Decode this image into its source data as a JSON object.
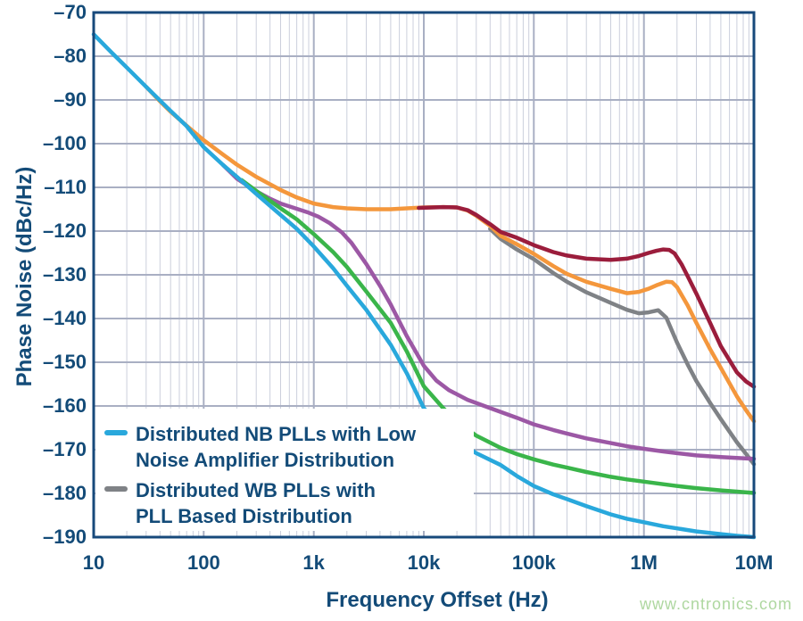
{
  "watermark": "www.cntronics.com",
  "colors": {
    "axis_text": "#134b78",
    "frame": "#17497b",
    "grid_major": "#a9afc3",
    "grid_minor": "#cbcfdc",
    "background": "#ffffff",
    "watermark": "#aed7a0"
  },
  "chart_data": {
    "type": "line",
    "title": "",
    "xlabel": "Frequency Offset (Hz)",
    "ylabel": "Phase Noise (dBc/Hz)",
    "x_scale": "log",
    "xlim": [
      10,
      10000000
    ],
    "ylim": [
      -190,
      -70
    ],
    "grid": {
      "horizontal_major": true,
      "vertical_major": true,
      "vertical_log_minor": true
    },
    "x_ticks": [
      {
        "value": 10,
        "label": "10"
      },
      {
        "value": 100,
        "label": "100"
      },
      {
        "value": 1000,
        "label": "1k"
      },
      {
        "value": 10000,
        "label": "10k"
      },
      {
        "value": 100000,
        "label": "100k"
      },
      {
        "value": 1000000,
        "label": "1M"
      },
      {
        "value": 10000000,
        "label": "10M"
      }
    ],
    "y_ticks": [
      {
        "value": -70,
        "label": "–70"
      },
      {
        "value": -80,
        "label": "–80"
      },
      {
        "value": -90,
        "label": "–90"
      },
      {
        "value": -100,
        "label": "–100"
      },
      {
        "value": -110,
        "label": "–110"
      },
      {
        "value": -120,
        "label": "–120"
      },
      {
        "value": -130,
        "label": "–130"
      },
      {
        "value": -140,
        "label": "–140"
      },
      {
        "value": -150,
        "label": "–150"
      },
      {
        "value": -160,
        "label": "–160"
      },
      {
        "value": -170,
        "label": "–170"
      },
      {
        "value": -180,
        "label": "–180"
      },
      {
        "value": -190,
        "label": "–190"
      }
    ],
    "legend": {
      "position": "inside-bottom-left",
      "entries": [
        {
          "series_id": "nb-plls-lna-distribution",
          "color": "#29a8dc",
          "label_lines": [
            "Distributed NB PLLs with Low",
            "Noise Amplifier Distribution"
          ]
        },
        {
          "series_id": "wb-plls-pll-distribution",
          "color": "#7f8286",
          "label_lines": [
            "Distributed WB PLLs with",
            "PLL Based Distribution"
          ]
        }
      ]
    },
    "series": [
      {
        "id": "wb-plls-pll-distribution",
        "legend_label": "Distributed WB PLLs with PLL Based Distribution",
        "color": "#7f8286",
        "points": [
          [
            40000,
            -119.5
          ],
          [
            50000,
            -121.8
          ],
          [
            70000,
            -124.2
          ],
          [
            100000,
            -126.4
          ],
          [
            150000,
            -129.6
          ],
          [
            200000,
            -131.6
          ],
          [
            300000,
            -134
          ],
          [
            500000,
            -136.4
          ],
          [
            700000,
            -138
          ],
          [
            900000,
            -138.8
          ],
          [
            1100000,
            -138.6
          ],
          [
            1350000,
            -138.1
          ],
          [
            1600000,
            -139.8
          ],
          [
            2000000,
            -145.5
          ],
          [
            2500000,
            -150.5
          ],
          [
            3000000,
            -154.3
          ],
          [
            4000000,
            -159.3
          ],
          [
            5000000,
            -163
          ],
          [
            7000000,
            -168.3
          ],
          [
            8500000,
            -171
          ],
          [
            10000000,
            -173.3
          ]
        ]
      },
      {
        "id": "series-orange",
        "legend_label": "",
        "color": "#f4973c",
        "points": [
          [
            30,
            -87
          ],
          [
            40,
            -90.3
          ],
          [
            50,
            -92.7
          ],
          [
            70,
            -95.9
          ],
          [
            100,
            -99.2
          ],
          [
            150,
            -102.5
          ],
          [
            200,
            -104.8
          ],
          [
            300,
            -107.6
          ],
          [
            500,
            -110.6
          ],
          [
            700,
            -112.3
          ],
          [
            1000,
            -113.7
          ],
          [
            1500,
            -114.5
          ],
          [
            2000,
            -114.8
          ],
          [
            3000,
            -115
          ],
          [
            5000,
            -115
          ],
          [
            7000,
            -114.8
          ],
          [
            10000,
            -114.6
          ],
          [
            15000,
            -114.5
          ],
          [
            20000,
            -114.6
          ],
          [
            25000,
            -115.3
          ],
          [
            30000,
            -116.5
          ],
          [
            40000,
            -118.8
          ],
          [
            50000,
            -121.1
          ],
          [
            70000,
            -123
          ],
          [
            100000,
            -125.2
          ],
          [
            150000,
            -128
          ],
          [
            200000,
            -129.8
          ],
          [
            300000,
            -131.6
          ],
          [
            500000,
            -133.2
          ],
          [
            700000,
            -134.2
          ],
          [
            900000,
            -133.9
          ],
          [
            1100000,
            -133.2
          ],
          [
            1300000,
            -132.4
          ],
          [
            1600000,
            -131.6
          ],
          [
            1800000,
            -131.7
          ],
          [
            2000000,
            -132.8
          ],
          [
            2500000,
            -137
          ],
          [
            3000000,
            -141
          ],
          [
            4000000,
            -147
          ],
          [
            5000000,
            -151.3
          ],
          [
            7000000,
            -157.8
          ],
          [
            8500000,
            -161
          ],
          [
            10000000,
            -163.5
          ]
        ]
      },
      {
        "id": "series-darkred",
        "legend_label": "",
        "color": "#9b1d3c",
        "points": [
          [
            9000,
            -114.7
          ],
          [
            12000,
            -114.6
          ],
          [
            15000,
            -114.5
          ],
          [
            20000,
            -114.6
          ],
          [
            25000,
            -115.2
          ],
          [
            30000,
            -116.3
          ],
          [
            40000,
            -118.4
          ],
          [
            50000,
            -120.2
          ],
          [
            70000,
            -121.5
          ],
          [
            100000,
            -123.2
          ],
          [
            150000,
            -124.8
          ],
          [
            200000,
            -125.6
          ],
          [
            300000,
            -126.3
          ],
          [
            500000,
            -126.6
          ],
          [
            700000,
            -126.3
          ],
          [
            900000,
            -125.7
          ],
          [
            1100000,
            -125
          ],
          [
            1300000,
            -124.5
          ],
          [
            1500000,
            -124.2
          ],
          [
            1700000,
            -124.3
          ],
          [
            1900000,
            -125.1
          ],
          [
            2200000,
            -127.6
          ],
          [
            2500000,
            -130.3
          ],
          [
            3000000,
            -134.3
          ],
          [
            4000000,
            -141
          ],
          [
            5000000,
            -146.3
          ],
          [
            7000000,
            -152.3
          ],
          [
            8500000,
            -154.4
          ],
          [
            10000000,
            -155.6
          ]
        ]
      },
      {
        "id": "series-purple",
        "legend_label": "",
        "color": "#9c58a5",
        "points": [
          [
            150,
            -104.9
          ],
          [
            200,
            -108
          ],
          [
            300,
            -110.9
          ],
          [
            400,
            -112.6
          ],
          [
            500,
            -113.7
          ],
          [
            700,
            -114.9
          ],
          [
            900,
            -115.8
          ],
          [
            1100,
            -116.7
          ],
          [
            1400,
            -118.2
          ],
          [
            1800,
            -120.3
          ],
          [
            2200,
            -122.7
          ],
          [
            3000,
            -127.5
          ],
          [
            4000,
            -132.5
          ],
          [
            5000,
            -136.8
          ],
          [
            7000,
            -144
          ],
          [
            10000,
            -150.8
          ],
          [
            13000,
            -154.2
          ],
          [
            17000,
            -156.4
          ],
          [
            25000,
            -158.6
          ],
          [
            40000,
            -160.5
          ],
          [
            70000,
            -162.7
          ],
          [
            100000,
            -164.2
          ],
          [
            150000,
            -165.5
          ],
          [
            200000,
            -166.3
          ],
          [
            300000,
            -167.4
          ],
          [
            500000,
            -168.5
          ],
          [
            700000,
            -169.2
          ],
          [
            1000000,
            -169.8
          ],
          [
            1500000,
            -170.4
          ],
          [
            2000000,
            -170.8
          ],
          [
            3000000,
            -171.3
          ],
          [
            5000000,
            -171.7
          ],
          [
            7000000,
            -171.9
          ],
          [
            10000000,
            -172.1
          ]
        ]
      },
      {
        "id": "series-green",
        "legend_label": "",
        "color": "#3ab54a",
        "points": [
          [
            220,
            -108.3
          ],
          [
            300,
            -110.8
          ],
          [
            500,
            -114.8
          ],
          [
            700,
            -117.3
          ],
          [
            1000,
            -120.7
          ],
          [
            1500,
            -124.8
          ],
          [
            2000,
            -128.2
          ],
          [
            3000,
            -133.8
          ],
          [
            5000,
            -141
          ],
          [
            7000,
            -147.5
          ],
          [
            10000,
            -155.5
          ],
          [
            15000,
            -160.5
          ],
          [
            20000,
            -163.5
          ],
          [
            30000,
            -166.8
          ],
          [
            50000,
            -169.6
          ],
          [
            70000,
            -171
          ],
          [
            100000,
            -172.2
          ],
          [
            150000,
            -173.4
          ],
          [
            200000,
            -174.1
          ],
          [
            300000,
            -175.1
          ],
          [
            500000,
            -176.2
          ],
          [
            700000,
            -176.8
          ],
          [
            1000000,
            -177.3
          ],
          [
            1500000,
            -177.9
          ],
          [
            2000000,
            -178.3
          ],
          [
            3000000,
            -178.8
          ],
          [
            5000000,
            -179.3
          ],
          [
            7000000,
            -179.6
          ],
          [
            10000000,
            -179.9
          ]
        ]
      },
      {
        "id": "nb-plls-lna-distribution",
        "legend_label": "Distributed NB PLLs with Low Noise Amplifier Distribution",
        "color": "#29a8dc",
        "points": [
          [
            10,
            -75
          ],
          [
            15,
            -79.5
          ],
          [
            20,
            -82.6
          ],
          [
            30,
            -87
          ],
          [
            50,
            -92.5
          ],
          [
            70,
            -96
          ],
          [
            100,
            -100.8
          ],
          [
            150,
            -104.9
          ],
          [
            200,
            -107.6
          ],
          [
            300,
            -111.5
          ],
          [
            500,
            -116.3
          ],
          [
            700,
            -119.5
          ],
          [
            1000,
            -123.5
          ],
          [
            1500,
            -128.5
          ],
          [
            2000,
            -132.5
          ],
          [
            3000,
            -138
          ],
          [
            5000,
            -146
          ],
          [
            7000,
            -152.5
          ],
          [
            10000,
            -160.5
          ],
          [
            15000,
            -165.5
          ],
          [
            20000,
            -168
          ],
          [
            30000,
            -170.8
          ],
          [
            50000,
            -173.5
          ],
          [
            70000,
            -176
          ],
          [
            100000,
            -178.3
          ],
          [
            150000,
            -180.2
          ],
          [
            200000,
            -181.3
          ],
          [
            300000,
            -182.9
          ],
          [
            500000,
            -184.8
          ],
          [
            700000,
            -185.8
          ],
          [
            1000000,
            -186.6
          ],
          [
            1500000,
            -187.5
          ],
          [
            2000000,
            -188
          ],
          [
            3000000,
            -188.7
          ],
          [
            5000000,
            -189.3
          ],
          [
            7000000,
            -189.7
          ],
          [
            10000000,
            -190
          ]
        ]
      }
    ]
  }
}
